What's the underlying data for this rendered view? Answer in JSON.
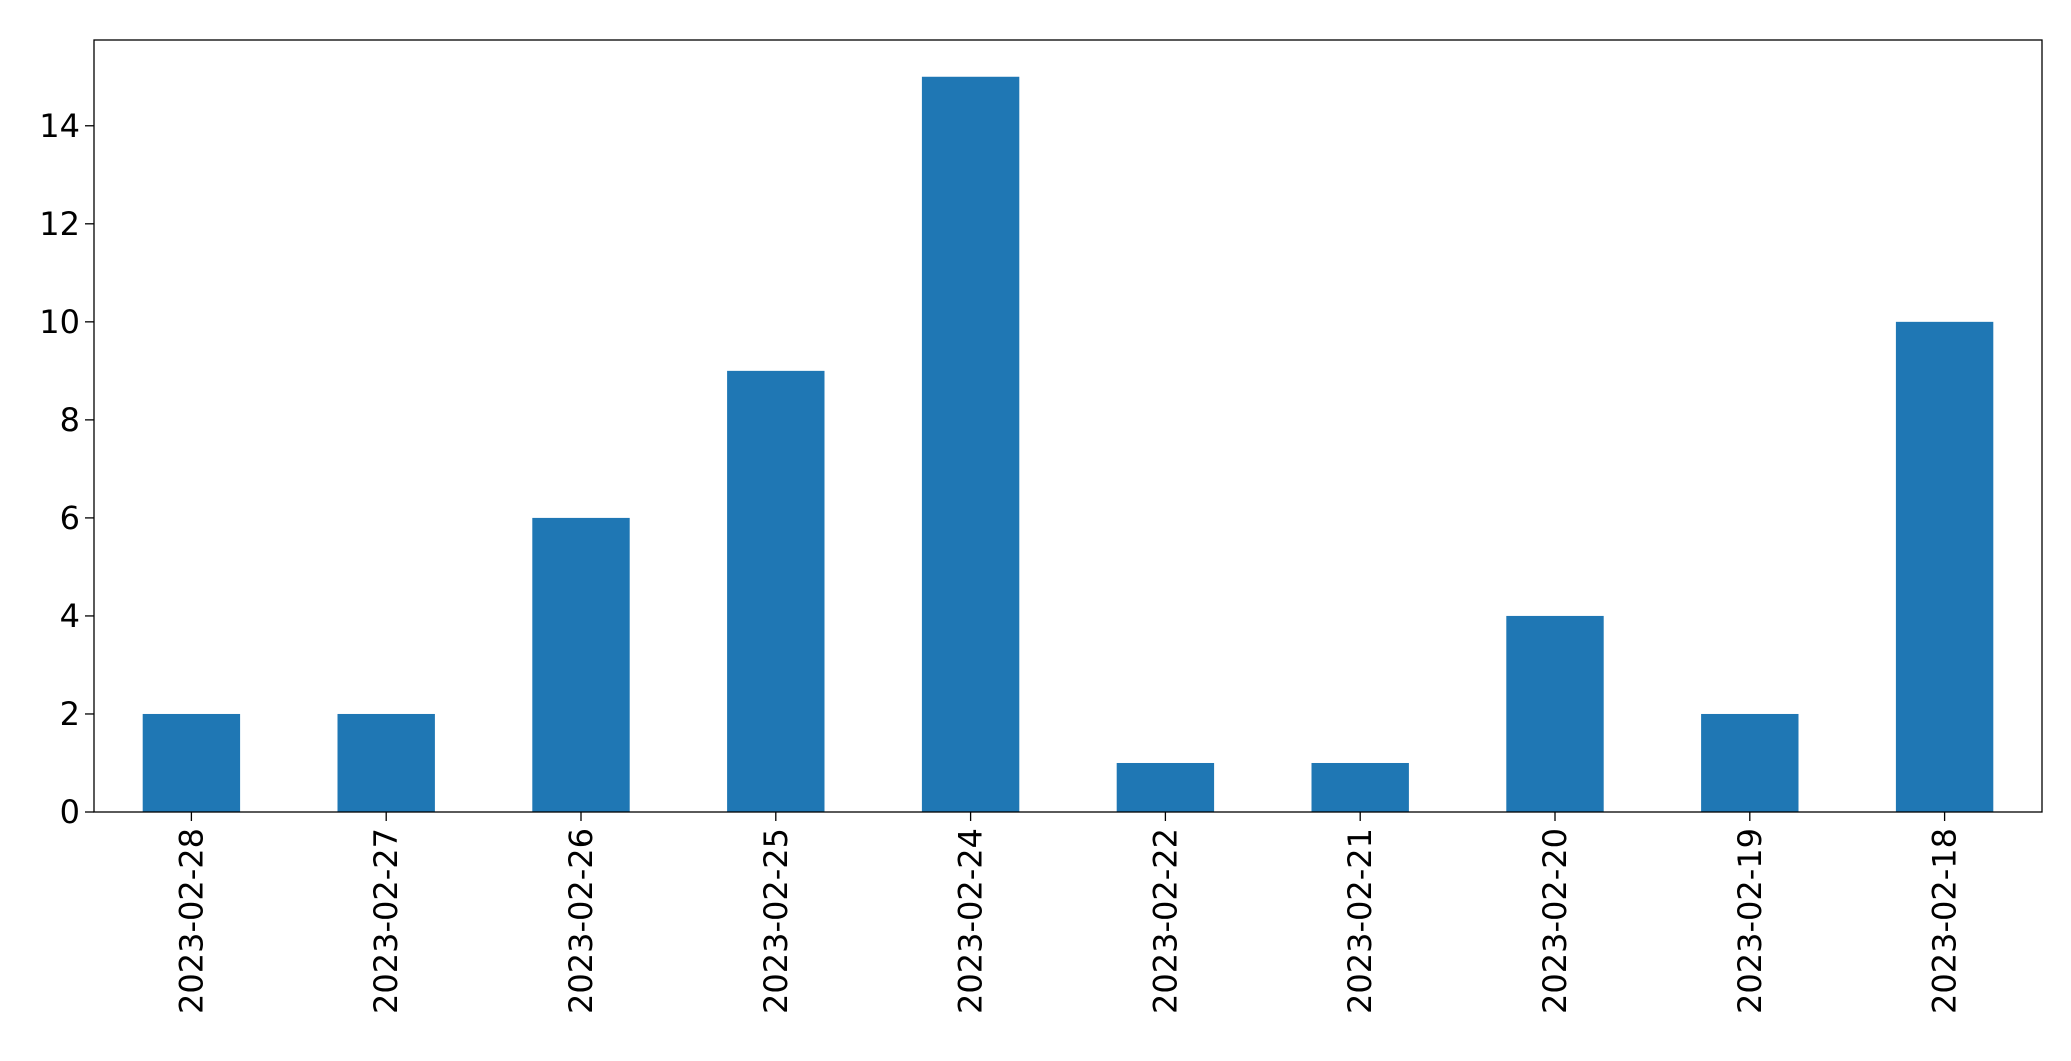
{
  "chart_data": {
    "type": "bar",
    "categories": [
      "2023-02-28",
      "2023-02-27",
      "2023-02-26",
      "2023-02-25",
      "2023-02-24",
      "2023-02-22",
      "2023-02-21",
      "2023-02-20",
      "2023-02-19",
      "2023-02-18"
    ],
    "values": [
      2,
      2,
      6,
      9,
      15,
      1,
      1,
      4,
      2,
      10
    ],
    "color": "#1f77b4",
    "ylim": [
      0,
      15.75
    ],
    "yticks": [
      0,
      2,
      4,
      6,
      8,
      10,
      12,
      14
    ],
    "grid": false
  }
}
